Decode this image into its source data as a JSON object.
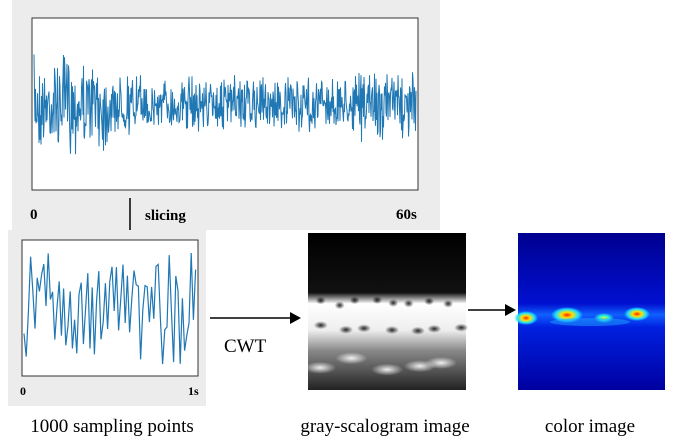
{
  "top_panel": {
    "start_label": "0",
    "end_label": "60s"
  },
  "slice_label": "slicing",
  "slice_panel": {
    "start_label": "0",
    "end_label": "1s"
  },
  "transform_label": "CWT",
  "captions": [
    "1000 sampling points",
    "gray-scalogram image",
    "color image"
  ]
}
